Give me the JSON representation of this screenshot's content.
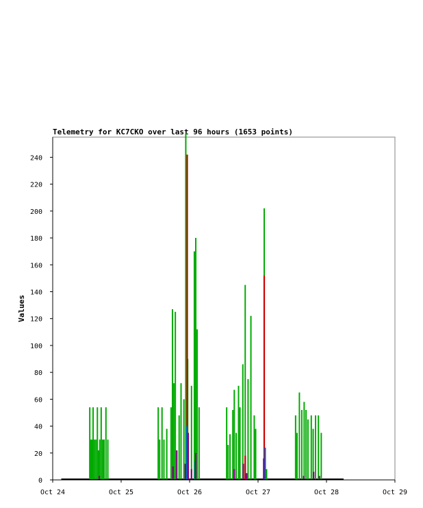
{
  "chart_data": {
    "type": "line",
    "title": "Telemetry for KC7CKO over last 96 hours (1653 points)",
    "xlabel": "",
    "ylabel": "Values",
    "x_ticks": [
      "Oct 24",
      "Oct 25",
      "Oct 26",
      "Oct 27",
      "Oct 28",
      "Oct 29"
    ],
    "y_ticks": [
      0,
      20,
      40,
      60,
      80,
      100,
      120,
      140,
      160,
      180,
      200,
      220,
      240
    ],
    "xlim": [
      "Oct 24",
      "Oct 29"
    ],
    "ylim": [
      0,
      255
    ],
    "grid": false,
    "legend": "none",
    "series": [
      {
        "color": "#00aa00",
        "spikes": [
          {
            "x": "Oct 24 13:00",
            "y": 54
          },
          {
            "x": "Oct 24 13:20",
            "y": 30
          },
          {
            "x": "Oct 24 13:45",
            "y": 30
          },
          {
            "x": "Oct 24 14:10",
            "y": 54
          },
          {
            "x": "Oct 24 14:40",
            "y": 30
          },
          {
            "x": "Oct 24 15:10",
            "y": 30
          },
          {
            "x": "Oct 24 15:40",
            "y": 54
          },
          {
            "x": "Oct 24 16:05",
            "y": 22
          },
          {
            "x": "Oct 24 16:30",
            "y": 30
          },
          {
            "x": "Oct 24 17:00",
            "y": 54
          },
          {
            "x": "Oct 24 17:30",
            "y": 30
          },
          {
            "x": "Oct 24 18:00",
            "y": 30
          },
          {
            "x": "Oct 24 18:40",
            "y": 54
          },
          {
            "x": "Oct 24 19:20",
            "y": 30
          },
          {
            "x": "Oct 25 13:00",
            "y": 54
          },
          {
            "x": "Oct 25 13:30",
            "y": 30
          },
          {
            "x": "Oct 25 14:20",
            "y": 54
          },
          {
            "x": "Oct 25 15:00",
            "y": 30
          },
          {
            "x": "Oct 25 16:00",
            "y": 38
          },
          {
            "x": "Oct 25 17:30",
            "y": 54
          },
          {
            "x": "Oct 25 18:00",
            "y": 127
          },
          {
            "x": "Oct 25 18:30",
            "y": 72
          },
          {
            "x": "Oct 25 19:00",
            "y": 125
          },
          {
            "x": "Oct 25 20:20",
            "y": 48
          },
          {
            "x": "Oct 25 21:00",
            "y": 72
          },
          {
            "x": "Oct 25 22:00",
            "y": 60
          },
          {
            "x": "Oct 25 22:40",
            "y": 258
          },
          {
            "x": "Oct 25 23:20",
            "y": 90
          },
          {
            "x": "Oct 26 00:40",
            "y": 70
          },
          {
            "x": "Oct 26 01:40",
            "y": 170
          },
          {
            "x": "Oct 26 02:10",
            "y": 180
          },
          {
            "x": "Oct 26 02:40",
            "y": 112
          },
          {
            "x": "Oct 26 03:20",
            "y": 54
          },
          {
            "x": "Oct 26 13:00",
            "y": 54
          },
          {
            "x": "Oct 26 13:30",
            "y": 26
          },
          {
            "x": "Oct 26 14:10",
            "y": 34
          },
          {
            "x": "Oct 26 15:10",
            "y": 52
          },
          {
            "x": "Oct 26 15:40",
            "y": 67
          },
          {
            "x": "Oct 26 16:20",
            "y": 35
          },
          {
            "x": "Oct 26 17:10",
            "y": 70
          },
          {
            "x": "Oct 26 17:40",
            "y": 54
          },
          {
            "x": "Oct 26 18:40",
            "y": 86
          },
          {
            "x": "Oct 26 19:30",
            "y": 145
          },
          {
            "x": "Oct 26 20:30",
            "y": 75
          },
          {
            "x": "Oct 26 21:30",
            "y": 122
          },
          {
            "x": "Oct 26 22:40",
            "y": 48
          },
          {
            "x": "Oct 26 23:10",
            "y": 38
          },
          {
            "x": "Oct 27 02:10",
            "y": 202
          },
          {
            "x": "Oct 27 03:00",
            "y": 8
          },
          {
            "x": "Oct 27 13:10",
            "y": 48
          },
          {
            "x": "Oct 27 13:40",
            "y": 35
          },
          {
            "x": "Oct 27 14:30",
            "y": 65
          },
          {
            "x": "Oct 27 15:20",
            "y": 52
          },
          {
            "x": "Oct 27 16:10",
            "y": 58
          },
          {
            "x": "Oct 27 16:50",
            "y": 52
          },
          {
            "x": "Oct 27 17:30",
            "y": 45
          },
          {
            "x": "Oct 27 18:40",
            "y": 48
          },
          {
            "x": "Oct 27 19:20",
            "y": 38
          },
          {
            "x": "Oct 27 20:10",
            "y": 48
          },
          {
            "x": "Oct 27 21:10",
            "y": 48
          },
          {
            "x": "Oct 27 22:10",
            "y": 35
          }
        ]
      },
      {
        "color": "#cc0000",
        "spikes": [
          {
            "x": "Oct 25 23:10",
            "y": 242
          },
          {
            "x": "Oct 26 19:30",
            "y": 18
          },
          {
            "x": "Oct 27 02:10",
            "y": 152
          }
        ]
      },
      {
        "color": "#0066cc",
        "spikes": [
          {
            "x": "Oct 25 23:00",
            "y": 40
          },
          {
            "x": "Oct 26 02:00",
            "y": 14
          },
          {
            "x": "Oct 27 02:30",
            "y": 24
          }
        ]
      },
      {
        "color": "#800080",
        "spikes": [
          {
            "x": "Oct 24 16:20",
            "y": 3
          },
          {
            "x": "Oct 25 18:10",
            "y": 10
          },
          {
            "x": "Oct 25 19:30",
            "y": 22
          },
          {
            "x": "Oct 25 22:30",
            "y": 12
          },
          {
            "x": "Oct 25 23:30",
            "y": 35
          },
          {
            "x": "Oct 26 00:40",
            "y": 8
          },
          {
            "x": "Oct 26 02:10",
            "y": 20
          },
          {
            "x": "Oct 26 15:40",
            "y": 8
          },
          {
            "x": "Oct 26 18:50",
            "y": 12
          },
          {
            "x": "Oct 26 20:00",
            "y": 5
          },
          {
            "x": "Oct 27 02:00",
            "y": 16
          },
          {
            "x": "Oct 27 16:00",
            "y": 3
          },
          {
            "x": "Oct 27 19:30",
            "y": 6
          },
          {
            "x": "Oct 27 21:30",
            "y": 3
          }
        ]
      }
    ]
  }
}
